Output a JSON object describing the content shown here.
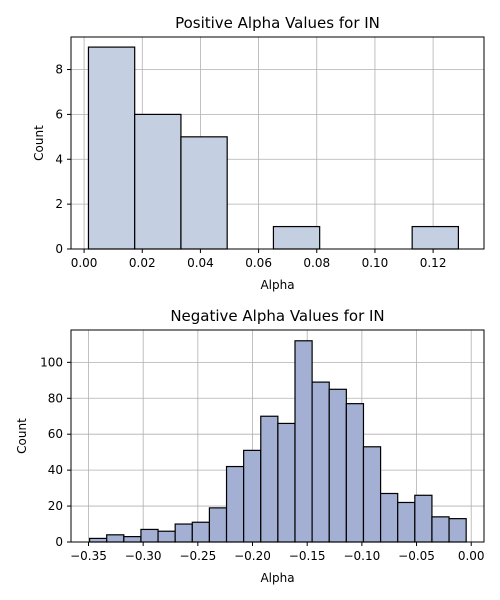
{
  "chart_data": [
    {
      "type": "histogram",
      "title": "Positive Alpha Values for IN",
      "xlabel": "Alpha",
      "ylabel": "Count",
      "xlim": [
        -0.0045,
        0.1375
      ],
      "ylim": [
        0,
        9.45
      ],
      "xticks": [
        0.0,
        0.02,
        0.04,
        0.06,
        0.08,
        0.1,
        0.12
      ],
      "xtick_labels": [
        "0.00",
        "0.02",
        "0.04",
        "0.06",
        "0.08",
        "0.10",
        "0.12"
      ],
      "yticks": [
        0,
        2,
        4,
        6,
        8
      ],
      "ytick_labels": [
        "0",
        "2",
        "4",
        "6",
        "8"
      ],
      "grid": true,
      "bar_color": "#c4cfe2",
      "bins": [
        {
          "x0": 0.0015,
          "x1": 0.0174,
          "count": 9
        },
        {
          "x0": 0.0174,
          "x1": 0.0333,
          "count": 6
        },
        {
          "x0": 0.0333,
          "x1": 0.0492,
          "count": 5
        },
        {
          "x0": 0.0492,
          "x1": 0.0651,
          "count": 0
        },
        {
          "x0": 0.0651,
          "x1": 0.081,
          "count": 1
        },
        {
          "x0": 0.081,
          "x1": 0.0969,
          "count": 0
        },
        {
          "x0": 0.0969,
          "x1": 0.1128,
          "count": 0
        },
        {
          "x0": 0.1128,
          "x1": 0.1287,
          "count": 1
        }
      ]
    },
    {
      "type": "histogram",
      "title": "Negative Alpha Values for IN",
      "xlabel": "Alpha",
      "ylabel": "Count",
      "xlim": [
        -0.366,
        0.0117
      ],
      "ylim": [
        0,
        118
      ],
      "xticks": [
        -0.35,
        -0.3,
        -0.25,
        -0.2,
        -0.15,
        -0.1,
        -0.05,
        0.0
      ],
      "xtick_labels": [
        "−0.35",
        "−0.30",
        "−0.25",
        "−0.20",
        "−0.15",
        "−0.10",
        "−0.05",
        "0.00"
      ],
      "yticks": [
        0,
        20,
        40,
        60,
        80,
        100
      ],
      "ytick_labels": [
        "0",
        "20",
        "40",
        "60",
        "80",
        "100"
      ],
      "grid": true,
      "bar_color": "#a3b0d3",
      "bin_start": -0.349,
      "bin_end": -0.0046,
      "counts": [
        2,
        4,
        3,
        7,
        6,
        10,
        11,
        19,
        42,
        51,
        70,
        66,
        112,
        89,
        85,
        77,
        53,
        27,
        22,
        26,
        14,
        13
      ]
    }
  ]
}
